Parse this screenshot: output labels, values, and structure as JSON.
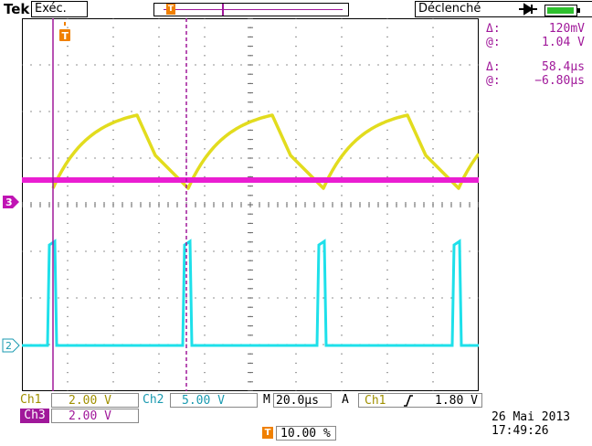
{
  "header": {
    "brand": "Tek",
    "run_state": "Exéc.",
    "trigger_state": "Déclenché"
  },
  "cursors": {
    "voltage_delta": "120mV",
    "voltage_at": "1.04 V",
    "time_delta": "58.4µs",
    "time_at": "−6.80µs",
    "delta_symbol": "Δ:",
    "at_symbol": "@:"
  },
  "channels": {
    "ch1": {
      "label": "Ch1",
      "scale": "2.00 V",
      "color": "#e2dc1e",
      "marker": ""
    },
    "ch2": {
      "label": "Ch2",
      "scale": "5.00 V",
      "color": "#1ee0ea",
      "marker": "2"
    },
    "ch3": {
      "label": "Ch3",
      "scale": "2.00 V",
      "color": "#ea1ed2",
      "marker": "3"
    }
  },
  "timebase": {
    "label": "M",
    "value": "20.0µs"
  },
  "trigger": {
    "mode": "A",
    "source": "Ch1",
    "slope": "rising",
    "level": "1.80 V",
    "marker": "T",
    "position": "10.00 %"
  },
  "datetime": {
    "date": "26 Mai  2013",
    "time": "17:49:26"
  },
  "icons": {
    "trigger_plug": "plug-icon",
    "battery": "battery-icon"
  },
  "colors": {
    "cursor": "#a0189a",
    "trigger_marker": "#f08000",
    "battery_fill": "#2ec02e"
  }
}
